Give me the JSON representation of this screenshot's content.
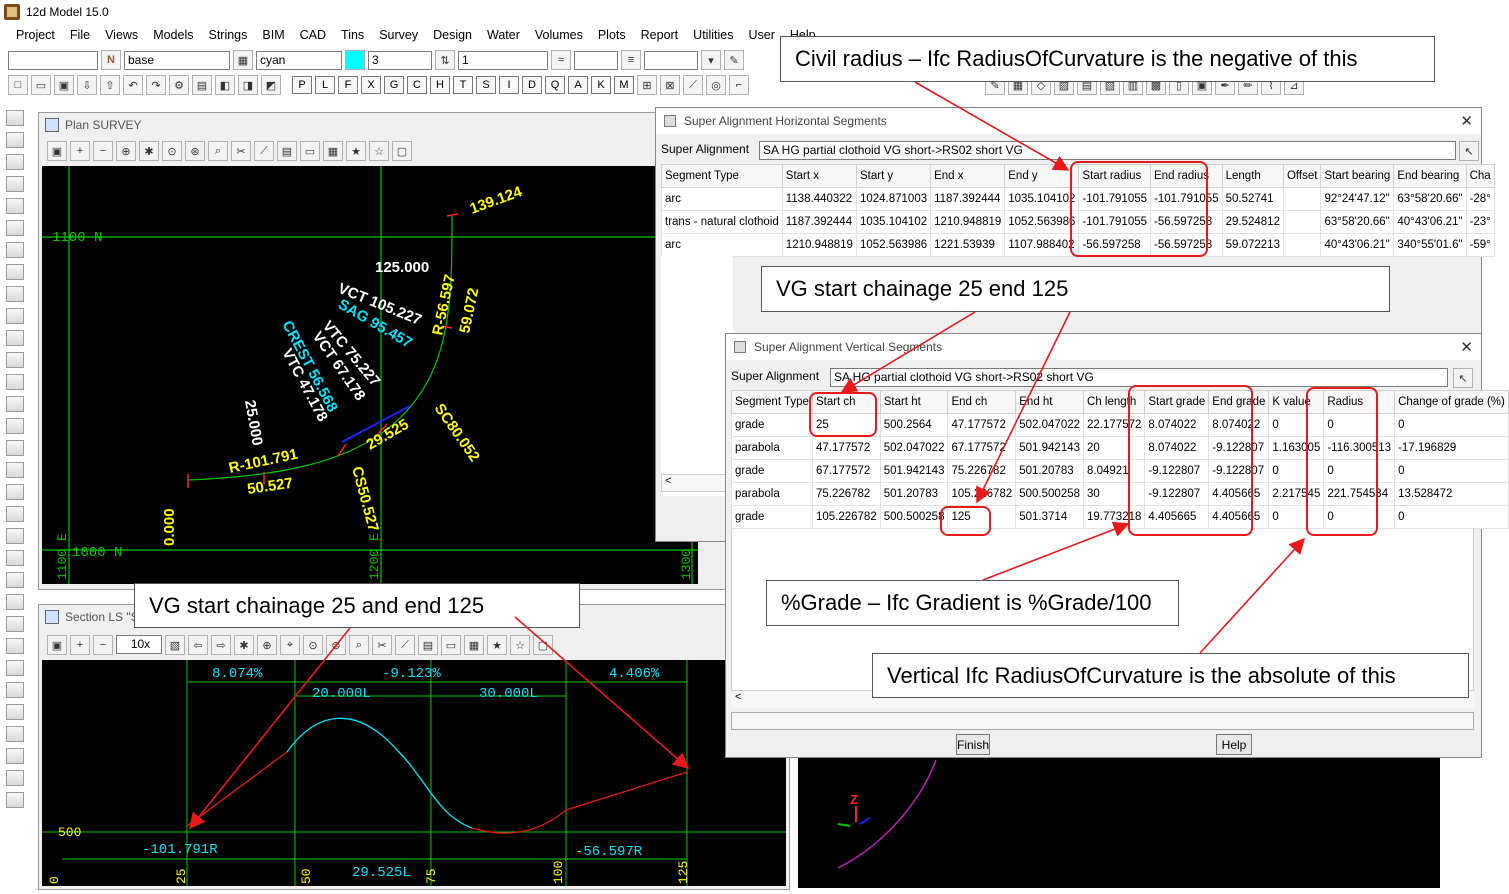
{
  "app": {
    "title": "12d Model  15.0"
  },
  "menu": [
    "Project",
    "File",
    "Views",
    "Models",
    "Strings",
    "BIM",
    "CAD",
    "Tins",
    "Survey",
    "Design",
    "Water",
    "Volumes",
    "Plots",
    "Report",
    "Utilities",
    "User",
    "Help"
  ],
  "toolbar": {
    "model": "base",
    "colour": "cyan",
    "weight": "3",
    "style": "1",
    "n_label": "N"
  },
  "letter_buttons": [
    "P",
    "L",
    "F",
    "X",
    "G",
    "C",
    "H",
    "T",
    "S",
    "I",
    "D",
    "Q",
    "A",
    "K",
    "M"
  ],
  "plan_window": {
    "title": "Plan SURVEY",
    "grid_labels": {
      "n1100": "1100  N",
      "n1000": "1000  N",
      "e1100": "1100 E",
      "e1200": "1200 E",
      "e1300": "1300"
    },
    "annotations": {
      "top_ch": "139.124",
      "ch125": "125.000",
      "vct105": "VCT 105.227",
      "sag": "SAG 95.457",
      "crest": "CREST 56.568",
      "vtc75": "VTC 75.227",
      "vct67": "VCT 67.178",
      "vtc47": "VTC 47.178",
      "r56": "R-56.597",
      "len59": "59.072",
      "ch25": "25.000",
      "r101": "R-101.791",
      "len50": "50.527",
      "len29": "29.525",
      "sc": "SC80.052",
      "cs": "CS50.527",
      "ch0": "0.000"
    }
  },
  "section_window": {
    "title": "Section LS \"SA",
    "zoom": "10x",
    "labels": {
      "g1": "8.074%",
      "g2": "-9.123%",
      "g3": "4.406%",
      "l20": "20.000L",
      "l30": "30.000L",
      "elev": "500",
      "r101": "-101.791R",
      "r56": "-56.597R",
      "l29": "29.525L",
      "x0": "0",
      "x25": "25",
      "x50": "50",
      "x75": "75",
      "x100": "100",
      "x125": "125"
    }
  },
  "horizontal_dialog": {
    "title": "Super Alignment Horizontal Segments",
    "field_label": "Super Alignment",
    "field_value": "SA HG partial clothoid VG short->RS02 short VG",
    "columns": [
      "Segment Type",
      "Start x",
      "Start y",
      "End x",
      "End y",
      "Start radius",
      "End radius",
      "Length",
      "Offset",
      "Start bearing",
      "End bearing",
      "Cha"
    ],
    "rows": [
      [
        "arc",
        "1138.440322",
        "1024.871003",
        "1187.392444",
        "1035.104102",
        "-101.791055",
        "-101.791055",
        "50.52741",
        "",
        "92°24'47.12\"",
        "63°58'20.66\"",
        "-28°"
      ],
      [
        "trans - natural clothoid",
        "1187.392444",
        "1035.104102",
        "1210.948819",
        "1052.563986",
        "-101.791055",
        "-56.597258",
        "29.524812",
        "",
        "63°58'20.66\"",
        "40°43'06.21\"",
        "-23°"
      ],
      [
        "arc",
        "1210.948819",
        "1052.563986",
        "1221.53939",
        "1107.988402",
        "-56.597258",
        "-56.597258",
        "59.072213",
        "",
        "40°43'06.21\"",
        "340°55'01.6\"",
        "-59°"
      ]
    ]
  },
  "vertical_dialog": {
    "title": "Super Alignment Vertical Segments",
    "field_label": "Super Alignment",
    "field_value": "SA HG partial clothoid VG short->RS02 short VG",
    "columns": [
      "Segment Type",
      "Start ch",
      "Start ht",
      "End ch",
      "End ht",
      "Ch length",
      "Start grade",
      "End grade",
      "K value",
      "Radius",
      "Change of grade (%)"
    ],
    "rows": [
      [
        "grade",
        "25",
        "500.2564",
        "47.177572",
        "502.047022",
        "22.177572",
        "8.074022",
        "8.074022",
        "0",
        "0",
        "0"
      ],
      [
        "parabola",
        "47.177572",
        "502.047022",
        "67.177572",
        "501.942143",
        "20",
        "8.074022",
        "-9.122807",
        "1.163005",
        "-116.300513",
        "-17.196829"
      ],
      [
        "grade",
        "67.177572",
        "501.942143",
        "75.226782",
        "501.20783",
        "8.04921",
        "-9.122807",
        "-9.122807",
        "0",
        "0",
        "0"
      ],
      [
        "parabola",
        "75.226782",
        "501.20783",
        "105.226782",
        "500.500258",
        "30",
        "-9.122807",
        "4.405665",
        "2.217545",
        "221.754534",
        "13.528472"
      ],
      [
        "grade",
        "105.226782",
        "500.500258",
        "125",
        "501.3714",
        "19.773218",
        "4.405665",
        "4.405665",
        "0",
        "0",
        "0"
      ]
    ],
    "finish": "Finish",
    "help": "Help"
  },
  "callouts": {
    "civil_radius": "Civil radius – Ifc RadiusOfCurvature is the negative of this",
    "vg_chainage_1": "VG start chainage 25 end 125",
    "vg_chainage_2": "VG start chainage 25 and end 125",
    "grade": "%Grade – Ifc Gradient is %Grade/100",
    "vertical_radius": "Vertical Ifc RadiusOfCurvature is the absolute of this"
  },
  "colors": {
    "annotation_red": "#e8191b",
    "green_grid": "#00c800",
    "cyan_text": "#00e5ff",
    "yellow_text": "#ffff00"
  }
}
